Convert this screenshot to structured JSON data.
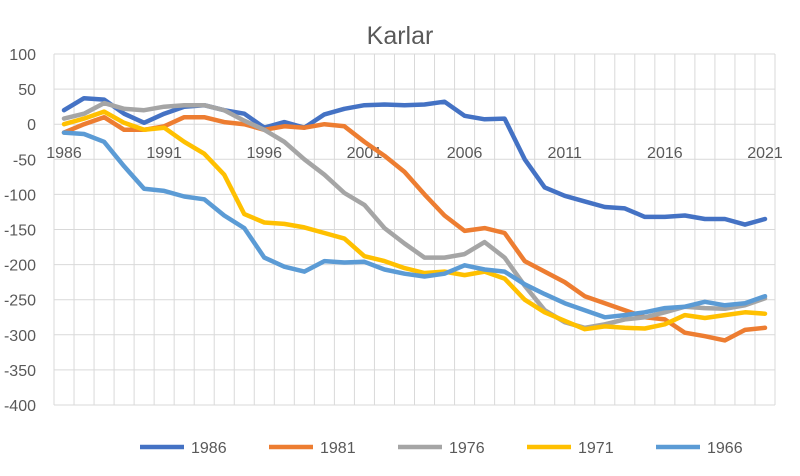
{
  "chart_data": {
    "type": "line",
    "title": "Karlar",
    "xlabel": "",
    "ylabel": "",
    "ylim": [
      -400,
      100
    ],
    "ytick_step": 50,
    "x": [
      1986,
      1987,
      1988,
      1989,
      1990,
      1991,
      1992,
      1993,
      1994,
      1995,
      1996,
      1997,
      1998,
      1999,
      2000,
      2001,
      2002,
      2003,
      2004,
      2005,
      2006,
      2007,
      2008,
      2009,
      2010,
      2011,
      2012,
      2013,
      2014,
      2015,
      2016,
      2017,
      2018,
      2019,
      2020,
      2021
    ],
    "xtick_labels": [
      "1986",
      "1991",
      "1996",
      "2001",
      "2006",
      "2011",
      "2016",
      "2021"
    ],
    "grid": true,
    "legend": "bottom",
    "series": [
      {
        "name": "1986",
        "color": "#4472C4",
        "values": [
          20,
          37,
          35,
          15,
          2,
          15,
          25,
          27,
          20,
          15,
          -5,
          3,
          -5,
          14,
          22,
          27,
          28,
          27,
          28,
          32,
          12,
          7,
          8,
          -50,
          -90,
          -102,
          -110,
          -118,
          -120,
          -132,
          -132,
          -130,
          -135,
          -135,
          -143,
          -135
        ]
      },
      {
        "name": "1981",
        "color": "#ED7D31",
        "values": [
          -12,
          0,
          10,
          -8,
          -8,
          -3,
          10,
          10,
          3,
          0,
          -8,
          -3,
          -5,
          0,
          -3,
          -25,
          -45,
          -68,
          -100,
          -130,
          -152,
          -148,
          -155,
          -195,
          -210,
          -225,
          -245,
          -255,
          -265,
          -275,
          -278,
          -297,
          -302,
          -308,
          -293,
          -290
        ]
      },
      {
        "name": "1976",
        "color": "#A5A5A5",
        "values": [
          8,
          15,
          30,
          22,
          20,
          25,
          27,
          27,
          20,
          5,
          -8,
          -25,
          -50,
          -72,
          -98,
          -115,
          -148,
          -170,
          -190,
          -190,
          -185,
          -168,
          -190,
          -230,
          -265,
          -282,
          -290,
          -285,
          -278,
          -275,
          -268,
          -260,
          -262,
          -263,
          -258,
          -248
        ]
      },
      {
        "name": "1971",
        "color": "#FFC000",
        "values": [
          0,
          8,
          18,
          2,
          -8,
          -5,
          -25,
          -42,
          -72,
          -128,
          -140,
          -142,
          -147,
          -155,
          -163,
          -188,
          -195,
          -205,
          -212,
          -210,
          -215,
          -210,
          -220,
          -250,
          -268,
          -280,
          -292,
          -288,
          -290,
          -291,
          -285,
          -272,
          -276,
          -272,
          -268,
          -270
        ]
      },
      {
        "name": "1966",
        "color": "#5B9BD5",
        "values": [
          -12,
          -14,
          -25,
          -60,
          -92,
          -95,
          -103,
          -107,
          -130,
          -148,
          -190,
          -203,
          -210,
          -195,
          -197,
          -196,
          -207,
          -213,
          -217,
          -213,
          -201,
          -207,
          -210,
          -228,
          -242,
          -255,
          -265,
          -275,
          -272,
          -268,
          -262,
          -260,
          -253,
          -258,
          -255,
          -245
        ]
      }
    ]
  }
}
